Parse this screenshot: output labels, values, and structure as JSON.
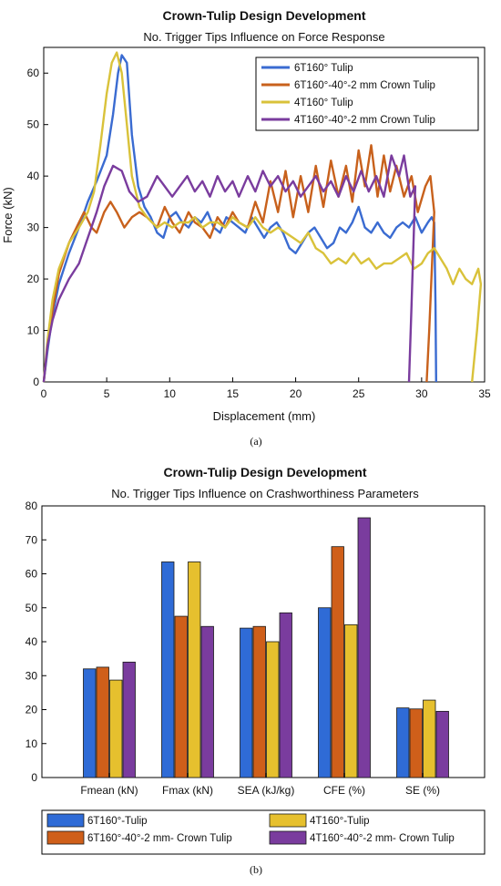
{
  "chart_data": [
    {
      "type": "line",
      "title": "Crown-Tulip Design Development",
      "subtitle": "No. Trigger Tips Influence on Force Response",
      "xlabel": "Displacement (mm)",
      "ylabel": "Force (kN)",
      "xlim": [
        0,
        35
      ],
      "ylim": [
        0,
        65
      ],
      "xticks": [
        "0",
        "5",
        "10",
        "15",
        "20",
        "25",
        "30",
        "35"
      ],
      "yticks": [
        "0",
        "10",
        "20",
        "30",
        "40",
        "50",
        "60"
      ],
      "grid": false,
      "legend_position": "top-right",
      "caption": "(a)",
      "series": [
        {
          "name": "6T160° Tulip",
          "color": "#3a6bd1",
          "points": [
            [
              0,
              0
            ],
            [
              0.3,
              6
            ],
            [
              0.7,
              13
            ],
            [
              1.2,
              19
            ],
            [
              2,
              25
            ],
            [
              2.8,
              30
            ],
            [
              3.5,
              35
            ],
            [
              4.2,
              39
            ],
            [
              5,
              44
            ],
            [
              5.5,
              52
            ],
            [
              5.9,
              60
            ],
            [
              6.2,
              63.5
            ],
            [
              6.6,
              62
            ],
            [
              7,
              48
            ],
            [
              7.5,
              38
            ],
            [
              8,
              34
            ],
            [
              8.5,
              32
            ],
            [
              9,
              29
            ],
            [
              9.5,
              28
            ],
            [
              10,
              32
            ],
            [
              10.5,
              33
            ],
            [
              11,
              31
            ],
            [
              11.5,
              30
            ],
            [
              12,
              32
            ],
            [
              12.5,
              31
            ],
            [
              13,
              33
            ],
            [
              13.5,
              30
            ],
            [
              14,
              29
            ],
            [
              14.5,
              32
            ],
            [
              15,
              31
            ],
            [
              15.5,
              30
            ],
            [
              16,
              29
            ],
            [
              16.5,
              32
            ],
            [
              17,
              30
            ],
            [
              17.5,
              28
            ],
            [
              18,
              30
            ],
            [
              18.5,
              31
            ],
            [
              19,
              29
            ],
            [
              19.5,
              26
            ],
            [
              20,
              25
            ],
            [
              20.5,
              27
            ],
            [
              21,
              29
            ],
            [
              21.5,
              30
            ],
            [
              22,
              28
            ],
            [
              22.5,
              26
            ],
            [
              23,
              27
            ],
            [
              23.5,
              30
            ],
            [
              24,
              29
            ],
            [
              24.5,
              31
            ],
            [
              25,
              34
            ],
            [
              25.5,
              30
            ],
            [
              26,
              29
            ],
            [
              26.5,
              31
            ],
            [
              27,
              29
            ],
            [
              27.5,
              28
            ],
            [
              28,
              30
            ],
            [
              28.5,
              31
            ],
            [
              29,
              30
            ],
            [
              29.5,
              32
            ],
            [
              30,
              29
            ],
            [
              30.5,
              31
            ],
            [
              30.8,
              32
            ],
            [
              31,
              31
            ],
            [
              31.1,
              15
            ],
            [
              31.15,
              0
            ]
          ]
        },
        {
          "name": "6T160°-40°-2 mm Crown Tulip",
          "color": "#c8611c",
          "points": [
            [
              0,
              0
            ],
            [
              0.3,
              7
            ],
            [
              0.7,
              14
            ],
            [
              1.2,
              21
            ],
            [
              2,
              27
            ],
            [
              2.8,
              31
            ],
            [
              3.2,
              33
            ],
            [
              3.8,
              30
            ],
            [
              4.2,
              29
            ],
            [
              4.8,
              33
            ],
            [
              5.3,
              35
            ],
            [
              5.8,
              33
            ],
            [
              6.4,
              30
            ],
            [
              7,
              32
            ],
            [
              7.6,
              33
            ],
            [
              8.2,
              32
            ],
            [
              9,
              30
            ],
            [
              9.6,
              34
            ],
            [
              10.2,
              31
            ],
            [
              10.8,
              29
            ],
            [
              11.5,
              33
            ],
            [
              12,
              31
            ],
            [
              12.6,
              30
            ],
            [
              13.2,
              28
            ],
            [
              13.8,
              32
            ],
            [
              14.4,
              30
            ],
            [
              15,
              33
            ],
            [
              15.5,
              31
            ],
            [
              16.2,
              30
            ],
            [
              16.8,
              35
            ],
            [
              17.4,
              31
            ],
            [
              18,
              39
            ],
            [
              18.6,
              33
            ],
            [
              19.2,
              41
            ],
            [
              19.8,
              32
            ],
            [
              20.4,
              40
            ],
            [
              21,
              33
            ],
            [
              21.6,
              42
            ],
            [
              22.2,
              34
            ],
            [
              22.8,
              43
            ],
            [
              23.4,
              36
            ],
            [
              24,
              42
            ],
            [
              24.5,
              35
            ],
            [
              25,
              45
            ],
            [
              25.5,
              38
            ],
            [
              26,
              46
            ],
            [
              26.5,
              36
            ],
            [
              27,
              44
            ],
            [
              27.5,
              37
            ],
            [
              28,
              42
            ],
            [
              28.6,
              36
            ],
            [
              29.2,
              40
            ],
            [
              29.7,
              33
            ],
            [
              30.3,
              38
            ],
            [
              30.7,
              40
            ],
            [
              31,
              33
            ],
            [
              30.6,
              10
            ],
            [
              30.4,
              0
            ]
          ]
        },
        {
          "name": "4T160° Tulip",
          "color": "#d9c23a",
          "points": [
            [
              0,
              0
            ],
            [
              0.3,
              8
            ],
            [
              0.7,
              16
            ],
            [
              1.2,
              22
            ],
            [
              2,
              27
            ],
            [
              2.8,
              30
            ],
            [
              3.5,
              33
            ],
            [
              4,
              37
            ],
            [
              4.5,
              46
            ],
            [
              5,
              56
            ],
            [
              5.4,
              62
            ],
            [
              5.8,
              64
            ],
            [
              6.2,
              60
            ],
            [
              6.6,
              50
            ],
            [
              7,
              40
            ],
            [
              7.6,
              34
            ],
            [
              8.2,
              32
            ],
            [
              9,
              30
            ],
            [
              9.6,
              31
            ],
            [
              10.2,
              30
            ],
            [
              10.8,
              31
            ],
            [
              11.5,
              31
            ],
            [
              12,
              32
            ],
            [
              12.6,
              30
            ],
            [
              13.2,
              31
            ],
            [
              13.8,
              31
            ],
            [
              14.4,
              30
            ],
            [
              15,
              32
            ],
            [
              15.5,
              31
            ],
            [
              16.2,
              30
            ],
            [
              16.8,
              32
            ],
            [
              17.4,
              30
            ],
            [
              18,
              29
            ],
            [
              18.6,
              30
            ],
            [
              19.2,
              29
            ],
            [
              19.8,
              28
            ],
            [
              20.4,
              27
            ],
            [
              21,
              29
            ],
            [
              21.6,
              26
            ],
            [
              22.2,
              25
            ],
            [
              22.8,
              23
            ],
            [
              23.4,
              24
            ],
            [
              24,
              23
            ],
            [
              24.6,
              25
            ],
            [
              25.2,
              23
            ],
            [
              25.8,
              24
            ],
            [
              26.4,
              22
            ],
            [
              27,
              23
            ],
            [
              27.6,
              23
            ],
            [
              28.2,
              24
            ],
            [
              28.8,
              25
            ],
            [
              29.4,
              22
            ],
            [
              30,
              23
            ],
            [
              30.5,
              25
            ],
            [
              31,
              26
            ],
            [
              31.5,
              24
            ],
            [
              32,
              22
            ],
            [
              32.5,
              19
            ],
            [
              33,
              22
            ],
            [
              33.5,
              20
            ],
            [
              34,
              19
            ],
            [
              34.5,
              22
            ],
            [
              34.7,
              19
            ],
            [
              34.4,
              10
            ],
            [
              34,
              0
            ]
          ]
        },
        {
          "name": "4T160°-40°-2 mm Crown Tulip",
          "color": "#7a3c9e",
          "points": [
            [
              0,
              0
            ],
            [
              0.3,
              7
            ],
            [
              0.7,
              12
            ],
            [
              1.2,
              16
            ],
            [
              2,
              20
            ],
            [
              2.8,
              23
            ],
            [
              3.5,
              28
            ],
            [
              4.2,
              33
            ],
            [
              4.8,
              38
            ],
            [
              5.5,
              42
            ],
            [
              6.2,
              41
            ],
            [
              6.8,
              37
            ],
            [
              7.5,
              35
            ],
            [
              8.2,
              36
            ],
            [
              9,
              40
            ],
            [
              9.6,
              38
            ],
            [
              10.2,
              36
            ],
            [
              10.8,
              38
            ],
            [
              11.4,
              40
            ],
            [
              12,
              37
            ],
            [
              12.6,
              39
            ],
            [
              13.2,
              36
            ],
            [
              13.8,
              40
            ],
            [
              14.4,
              37
            ],
            [
              15,
              39
            ],
            [
              15.5,
              36
            ],
            [
              16.2,
              40
            ],
            [
              16.8,
              37
            ],
            [
              17.4,
              41
            ],
            [
              18,
              38
            ],
            [
              18.6,
              40
            ],
            [
              19.2,
              37
            ],
            [
              19.8,
              39
            ],
            [
              20.4,
              36
            ],
            [
              21,
              38
            ],
            [
              21.6,
              40
            ],
            [
              22.2,
              37
            ],
            [
              22.8,
              39
            ],
            [
              23.4,
              36
            ],
            [
              24,
              40
            ],
            [
              24.6,
              37
            ],
            [
              25.2,
              41
            ],
            [
              25.8,
              37
            ],
            [
              26.4,
              40
            ],
            [
              27,
              36
            ],
            [
              27.6,
              44
            ],
            [
              28.2,
              40
            ],
            [
              28.6,
              44
            ],
            [
              29.1,
              36
            ],
            [
              29.5,
              38
            ],
            [
              29.2,
              15
            ],
            [
              29.0,
              0
            ]
          ]
        }
      ]
    },
    {
      "type": "bar",
      "title": "Crown-Tulip Design Development",
      "subtitle": "No. Trigger Tips Influence on Crashworthiness Parameters",
      "ylim": [
        0,
        80
      ],
      "yticks": [
        "0",
        "10",
        "20",
        "30",
        "40",
        "50",
        "60",
        "70",
        "80"
      ],
      "grid": false,
      "legend_position": "bottom",
      "caption": "(b)",
      "categories": [
        "Fmean (kN)",
        "Fmax (kN)",
        "SEA (kJ/kg)",
        "CFE (%)",
        "SE (%)"
      ],
      "series": [
        {
          "name": "6T160°-Tulip",
          "color": "#2f6bd6",
          "values": [
            32,
            63.5,
            44,
            50,
            20.5
          ]
        },
        {
          "name": "6T160°-40°-2 mm- Crown Tulip",
          "color": "#cf5f1a",
          "values": [
            32.5,
            47.5,
            44.5,
            68,
            20.2
          ]
        },
        {
          "name": "4T160°-Tulip",
          "color": "#e6c02e",
          "values": [
            28.7,
            63.5,
            40,
            45,
            22.8
          ]
        },
        {
          "name": "4T160°-40°-2 mm- Crown Tulip",
          "color": "#7a3c9e",
          "values": [
            34,
            44.5,
            48.5,
            76.5,
            19.5
          ]
        }
      ]
    }
  ]
}
